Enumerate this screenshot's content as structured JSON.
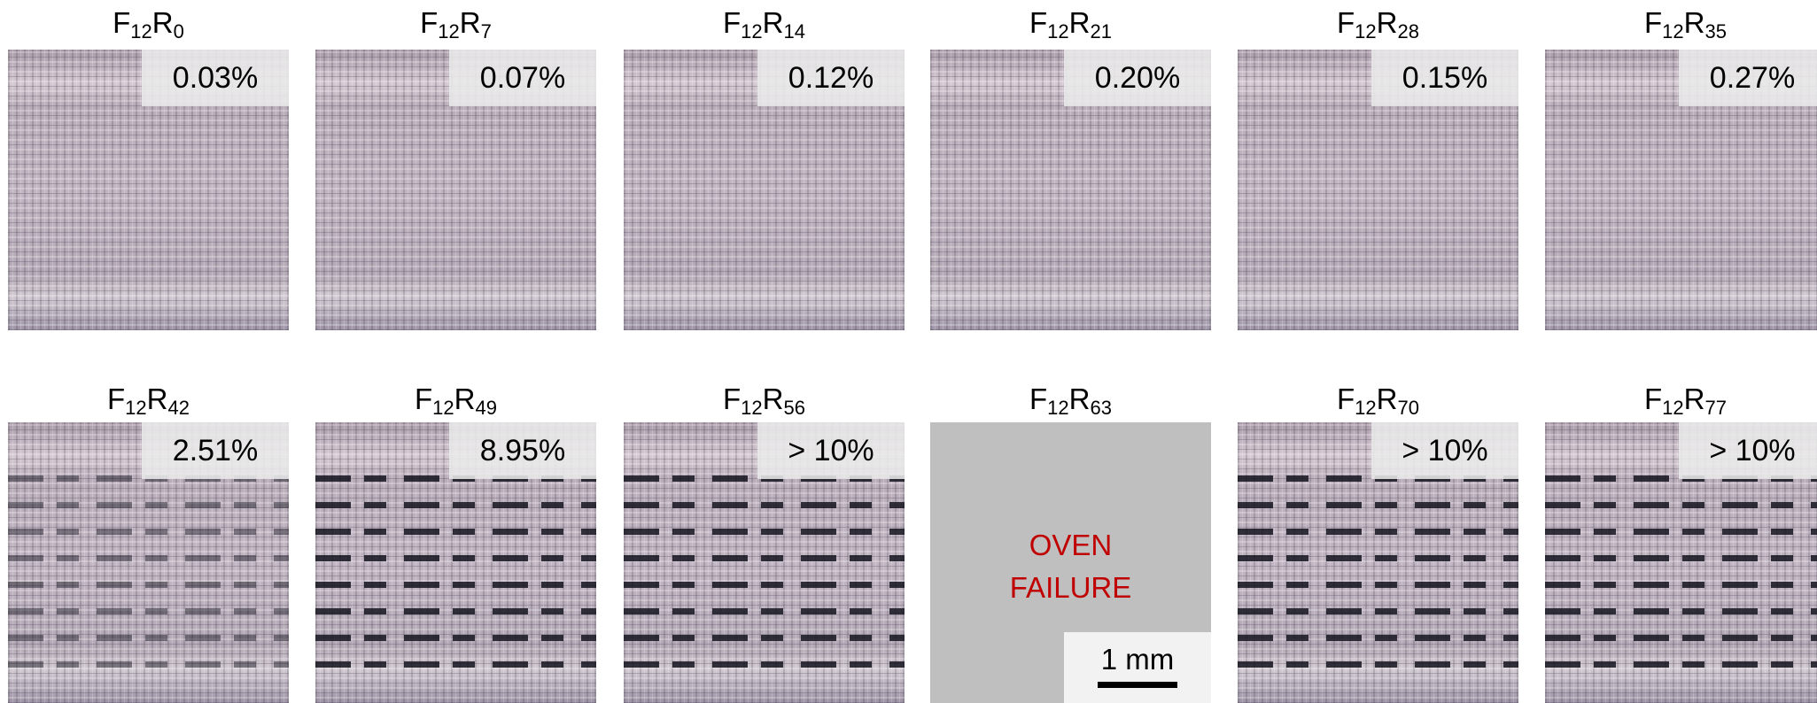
{
  "panels": [
    {
      "title": {
        "f": "F",
        "f_sub": "12",
        "r": "R",
        "r_sub": "0"
      },
      "porosity": "0.03%"
    },
    {
      "title": {
        "f": "F",
        "f_sub": "12",
        "r": "R",
        "r_sub": "7"
      },
      "porosity": "0.07%"
    },
    {
      "title": {
        "f": "F",
        "f_sub": "12",
        "r": "R",
        "r_sub": "14"
      },
      "porosity": "0.12%"
    },
    {
      "title": {
        "f": "F",
        "f_sub": "12",
        "r": "R",
        "r_sub": "21"
      },
      "porosity": "0.20%"
    },
    {
      "title": {
        "f": "F",
        "f_sub": "12",
        "r": "R",
        "r_sub": "28"
      },
      "porosity": "0.15%"
    },
    {
      "title": {
        "f": "F",
        "f_sub": "12",
        "r": "R",
        "r_sub": "35"
      },
      "porosity": "0.27%"
    },
    {
      "title": {
        "f": "F",
        "f_sub": "12",
        "r": "R",
        "r_sub": "42"
      },
      "porosity": "2.51%"
    },
    {
      "title": {
        "f": "F",
        "f_sub": "12",
        "r": "R",
        "r_sub": "49"
      },
      "porosity": "8.95%"
    },
    {
      "title": {
        "f": "F",
        "f_sub": "12",
        "r": "R",
        "r_sub": "56"
      },
      "porosity": "> 10%"
    },
    {
      "title": {
        "f": "F",
        "f_sub": "12",
        "r": "R",
        "r_sub": "63"
      },
      "failure": [
        "OVEN",
        "FAILURE"
      ],
      "scale_bar": "1 mm"
    },
    {
      "title": {
        "f": "F",
        "f_sub": "12",
        "r": "R",
        "r_sub": "70"
      },
      "porosity": "> 10%"
    },
    {
      "title": {
        "f": "F",
        "f_sub": "12",
        "r": "R",
        "r_sub": "77"
      },
      "porosity": "> 10%"
    }
  ]
}
